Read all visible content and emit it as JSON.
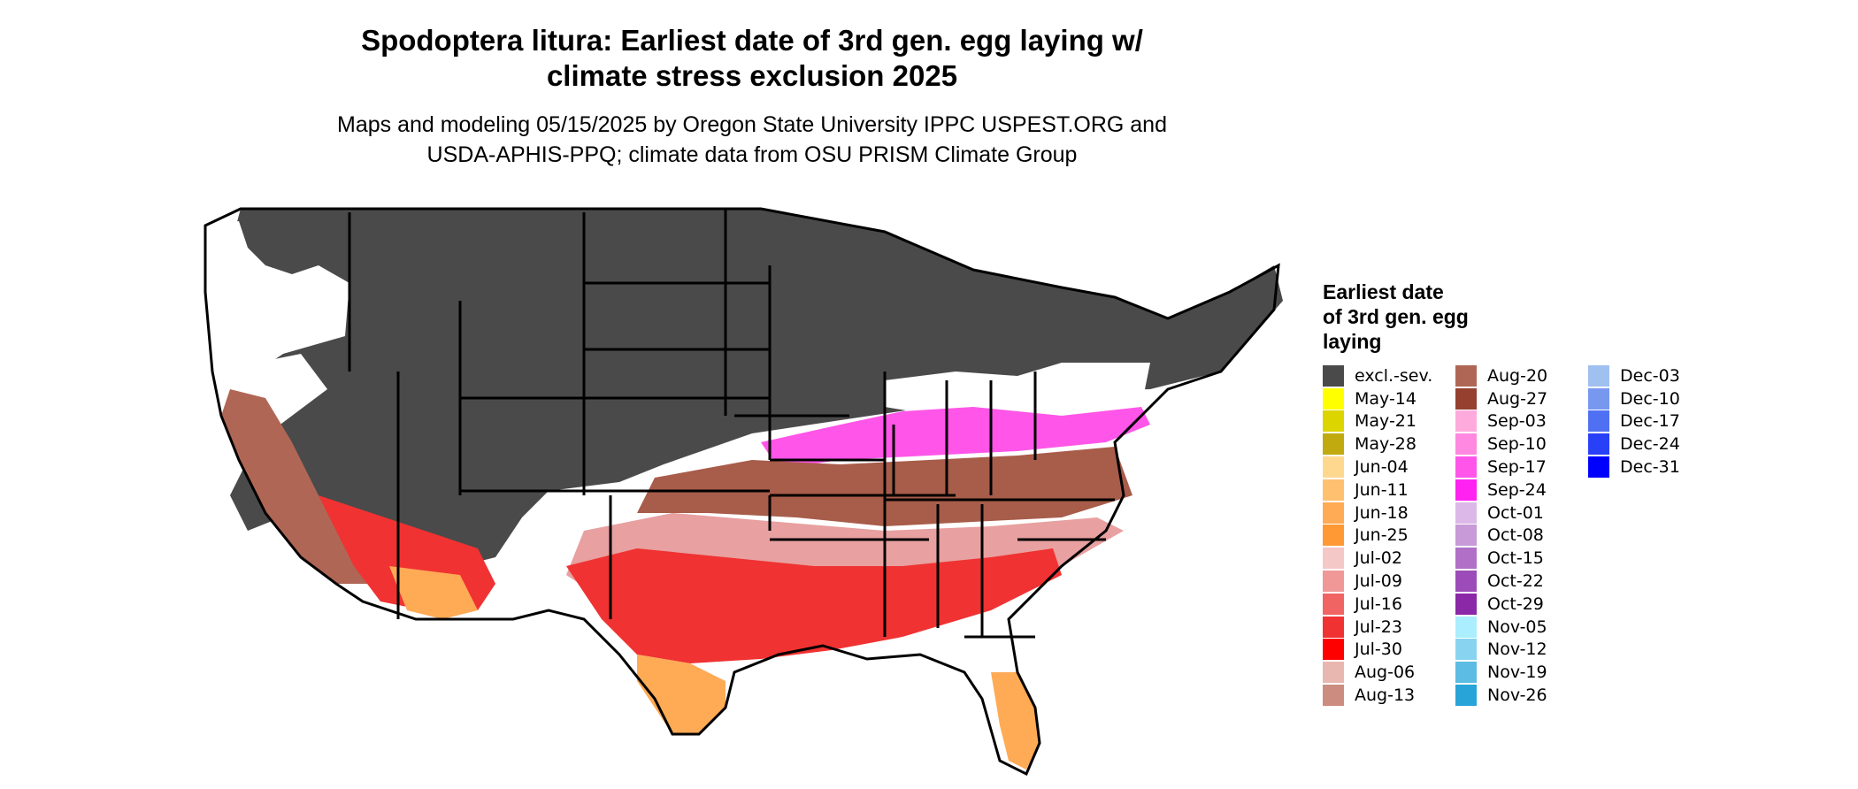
{
  "title_line1": "Spodoptera litura: Earliest date of 3rd gen. egg laying w/",
  "title_line2": "climate stress exclusion 2025",
  "subtitle_line1": "Maps and modeling 05/15/2025 by Oregon State University IPPC USPEST.ORG and",
  "subtitle_line2": "USDA-APHIS-PPQ; climate data from OSU PRISM Climate Group",
  "legend": {
    "title": "Earliest date\nof 3rd gen. egg\nlaying",
    "columns": [
      [
        {
          "label": "excl.-sev.",
          "color": "#4a4a4a"
        },
        {
          "label": "May-14",
          "color": "#ffff00"
        },
        {
          "label": "May-21",
          "color": "#dcd500"
        },
        {
          "label": "May-28",
          "color": "#c0aa10"
        },
        {
          "label": "Jun-04",
          "color": "#ffd890"
        },
        {
          "label": "Jun-11",
          "color": "#ffc070"
        },
        {
          "label": "Jun-18",
          "color": "#ffaa55"
        },
        {
          "label": "Jun-25",
          "color": "#ff9933"
        },
        {
          "label": "Jul-02",
          "color": "#f5c8c8"
        },
        {
          "label": "Jul-09",
          "color": "#f09898"
        },
        {
          "label": "Jul-16",
          "color": "#f06464"
        },
        {
          "label": "Jul-23",
          "color": "#f03232"
        },
        {
          "label": "Jul-30",
          "color": "#ff0000"
        },
        {
          "label": "Aug-06",
          "color": "#e8b8b0"
        },
        {
          "label": "Aug-13",
          "color": "#cc8c80"
        }
      ],
      [
        {
          "label": "Aug-20",
          "color": "#b06655"
        },
        {
          "label": "Aug-27",
          "color": "#964030"
        },
        {
          "label": "Sep-03",
          "color": "#ffaadd"
        },
        {
          "label": "Sep-10",
          "color": "#ff88e0"
        },
        {
          "label": "Sep-17",
          "color": "#ff55e8"
        },
        {
          "label": "Sep-24",
          "color": "#ff22f0"
        },
        {
          "label": "Oct-01",
          "color": "#dcb8e8"
        },
        {
          "label": "Oct-08",
          "color": "#c89ad8"
        },
        {
          "label": "Oct-15",
          "color": "#b070c8"
        },
        {
          "label": "Oct-22",
          "color": "#9c4cb8"
        },
        {
          "label": "Oct-29",
          "color": "#8a28a8"
        },
        {
          "label": "Nov-05",
          "color": "#aaeeff"
        },
        {
          "label": "Nov-12",
          "color": "#88d4f0"
        },
        {
          "label": "Nov-19",
          "color": "#5cbce4"
        },
        {
          "label": "Nov-26",
          "color": "#28a4d8"
        }
      ],
      [
        {
          "label": "Dec-03",
          "color": "#a0c0f0"
        },
        {
          "label": "Dec-10",
          "color": "#7898f0"
        },
        {
          "label": "Dec-17",
          "color": "#5070f4"
        },
        {
          "label": "Dec-24",
          "color": "#2840f8"
        },
        {
          "label": "Dec-31",
          "color": "#0000ff"
        }
      ]
    ]
  }
}
